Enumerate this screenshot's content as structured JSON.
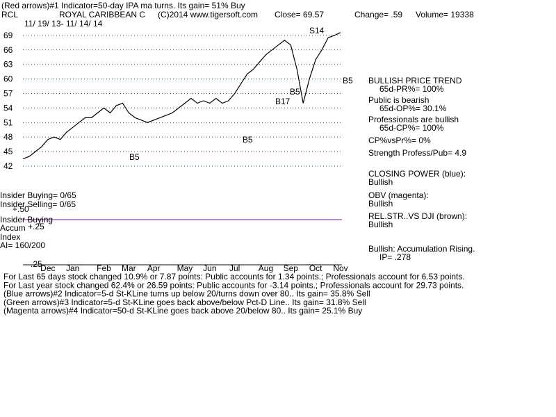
{
  "chart_data": {
    "type": "line",
    "title": "(Red arrows)#1 Indicator=50-day IPA ma turns. Its gain= 51% Buy",
    "header": [
      "RCL",
      "ROYAL CARIBBEAN C",
      "(C)2014 www.tigersoft.com",
      "Close= 69.57",
      "Change= .59",
      "Volume= 19338"
    ],
    "subtitle": "11/ 19/ 13- 11/ 14/ 14",
    "categories": [
      null,
      null,
      null,
      null,
      "Dec",
      null,
      null,
      null,
      "Jan",
      null,
      null,
      null,
      null,
      "Feb",
      null,
      null,
      null,
      "Mar",
      null,
      null,
      null,
      "Apr",
      null,
      null,
      null,
      null,
      "May",
      null,
      null,
      null,
      "Jun",
      null,
      null,
      null,
      "Jul",
      null,
      null,
      null,
      null,
      "Aug",
      null,
      null,
      null,
      "Sep",
      null,
      null,
      null,
      "Oct",
      null,
      null,
      null,
      "Nov"
    ],
    "values": [
      43.5,
      44,
      45,
      46,
      47.5,
      48,
      47.5,
      49,
      50,
      51,
      52,
      52,
      53,
      54,
      53,
      54.5,
      55,
      53,
      52,
      51.5,
      51,
      51.5,
      52,
      52.5,
      53,
      54,
      55,
      56,
      55,
      55.5,
      55,
      56,
      55,
      55.5,
      57,
      59,
      61,
      62,
      63.5,
      65,
      66,
      67,
      68,
      67,
      62,
      55,
      60,
      64,
      66,
      68.5,
      69,
      69.57
    ],
    "color": "#000000",
    "ylim": [
      40.5,
      72
    ],
    "yticks": [
      42,
      45,
      48,
      51,
      54,
      57,
      60,
      63,
      66,
      69
    ],
    "grid": true,
    "annotations": [
      "S14",
      "B5",
      "B5",
      "B17",
      "B5",
      "B5"
    ],
    "side_notes": [
      "BULLISH PRICE TREND",
      "65d-PR%= 100%",
      "Public is bearish",
      "65d-OP%= 30.1%",
      "Professionals are bullish",
      "65d-CP%= 100%",
      "CP%vsPr%= 0%",
      "Strength Profess/Pub= 4.9",
      "CLOSING POWER (blue):",
      "Bullish",
      "OBV (magenta):",
      "Bullish",
      "REL.STR..VS DJI (brown):",
      "Bullish",
      "Bullish: Accumulation Rising.",
      "IP= .278"
    ],
    "left_notes": [
      "Insider Buying= 0/65",
      "Insider Selling= 0/65",
      "+.50",
      "Insider Buying",
      "Accum",
      "+.25",
      "Index",
      "AI= 160/200",
      "-.25"
    ],
    "footer": [
      "For Last 65 days stock changed  10.9% or  7.87 points:  Public accounts for  1.34 points.;  Professionals account for  6.53 points.",
      "For Last year stock changed  62.4% or  26.59 points:  Public accounts for -3.14 points.;  Professionals account for  29.73 points.",
      "(Blue arrows)#2 Indicator=5-d St-KLine turns up below 20/turns down over 80.. Its gain= 35.8% Sell",
      "(Green arrows)#3 Indicator=5-d St-KLine goes back above/below Pct-D Line.. Its gain= 31.8% Sell",
      "(Magenta arrows)#4 Indicator=50-d St-KLine goes back above 20/below 80.. Its gain= 25.1% Buy"
    ]
  }
}
